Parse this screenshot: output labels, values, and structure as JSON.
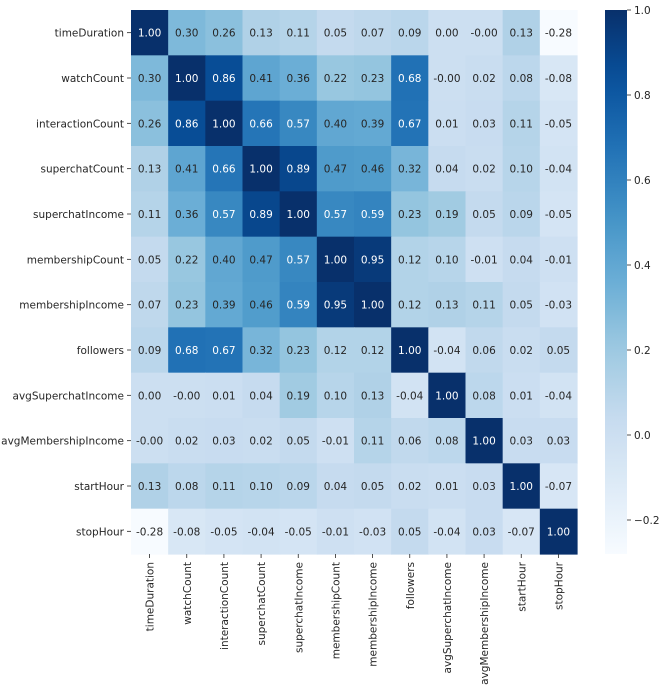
{
  "chart_data": {
    "type": "heatmap",
    "title": "",
    "xlabel": "",
    "ylabel": "",
    "colormap": "Blues",
    "vmin": -0.28,
    "vmax": 1.0,
    "colorbar_ticks": [
      -0.2,
      0.0,
      0.2,
      0.4,
      0.6,
      0.8,
      1.0
    ],
    "colorbar_tick_labels": [
      "−0.2",
      "0.0",
      "0.2",
      "0.4",
      "0.6",
      "0.8",
      "1.0"
    ],
    "rows": [
      "timeDuration",
      "watchCount",
      "interactionCount",
      "superchatCount",
      "superchatIncome",
      "membershipCount",
      "membershipIncome",
      "followers",
      "avgSuperchatIncome",
      "avgMembershipIncome",
      "startHour",
      "stopHour"
    ],
    "columns": [
      "timeDuration",
      "watchCount",
      "interactionCount",
      "superchatCount",
      "superchatIncome",
      "membershipCount",
      "membershipIncome",
      "followers",
      "avgSuperchatIncome",
      "avgMembershipIncome",
      "startHour",
      "stopHour"
    ],
    "values": [
      [
        1.0,
        0.3,
        0.26,
        0.13,
        0.11,
        0.05,
        0.07,
        0.09,
        0.0,
        -0.0,
        0.13,
        -0.28
      ],
      [
        0.3,
        1.0,
        0.86,
        0.41,
        0.36,
        0.22,
        0.23,
        0.68,
        -0.0,
        0.02,
        0.08,
        -0.08
      ],
      [
        0.26,
        0.86,
        1.0,
        0.66,
        0.57,
        0.4,
        0.39,
        0.67,
        0.01,
        0.03,
        0.11,
        -0.05
      ],
      [
        0.13,
        0.41,
        0.66,
        1.0,
        0.89,
        0.47,
        0.46,
        0.32,
        0.04,
        0.02,
        0.1,
        -0.04
      ],
      [
        0.11,
        0.36,
        0.57,
        0.89,
        1.0,
        0.57,
        0.59,
        0.23,
        0.19,
        0.05,
        0.09,
        -0.05
      ],
      [
        0.05,
        0.22,
        0.4,
        0.47,
        0.57,
        1.0,
        0.95,
        0.12,
        0.1,
        -0.01,
        0.04,
        -0.01
      ],
      [
        0.07,
        0.23,
        0.39,
        0.46,
        0.59,
        0.95,
        1.0,
        0.12,
        0.13,
        0.11,
        0.05,
        -0.03
      ],
      [
        0.09,
        0.68,
        0.67,
        0.32,
        0.23,
        0.12,
        0.12,
        1.0,
        -0.04,
        0.06,
        0.02,
        0.05
      ],
      [
        0.0,
        -0.0,
        0.01,
        0.04,
        0.19,
        0.1,
        0.13,
        -0.04,
        1.0,
        0.08,
        0.01,
        -0.04
      ],
      [
        -0.0,
        0.02,
        0.03,
        0.02,
        0.05,
        -0.01,
        0.11,
        0.06,
        0.08,
        1.0,
        0.03,
        0.03
      ],
      [
        0.13,
        0.08,
        0.11,
        0.1,
        0.09,
        0.04,
        0.05,
        0.02,
        0.01,
        0.03,
        1.0,
        -0.07
      ],
      [
        -0.28,
        -0.08,
        -0.05,
        -0.04,
        -0.05,
        -0.01,
        -0.03,
        0.05,
        -0.04,
        0.03,
        -0.07,
        1.0
      ]
    ]
  }
}
